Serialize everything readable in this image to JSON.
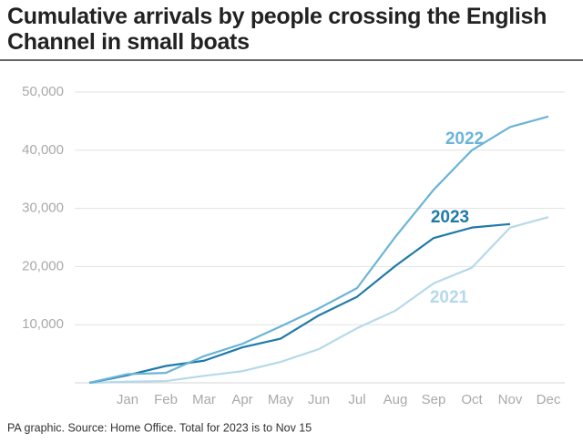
{
  "chart_data": {
    "type": "line",
    "title": "Cumulative arrivals by people crossing the English Channel in small boats",
    "footnote": "PA graphic. Source: Home Office. Total for 2023 is to Nov 15",
    "categories": [
      null,
      "Jan",
      "Feb",
      "Mar",
      "Apr",
      "May",
      "Jun",
      "Jul",
      "Aug",
      "Sep",
      "Oct",
      "Nov",
      "Dec"
    ],
    "series": [
      {
        "name": "2022",
        "color": "#6ab4d8",
        "values": [
          0,
          1500,
          1700,
          4600,
          6700,
          9700,
          12800,
          16300,
          25100,
          33200,
          40000,
          44000,
          45800
        ]
      },
      {
        "name": "2023",
        "color": "#1f7aa8",
        "values": [
          0,
          1300,
          2900,
          3800,
          6100,
          7600,
          11600,
          14800,
          20100,
          24900,
          26700,
          27300,
          null
        ]
      },
      {
        "name": "2021",
        "color": "#b5d9ea",
        "values": [
          0,
          200,
          300,
          1200,
          2000,
          3600,
          5800,
          9400,
          12400,
          17100,
          19800,
          26700,
          28500
        ]
      }
    ],
    "ylim": [
      0,
      50000
    ],
    "yticks": [
      {
        "value": 10000,
        "label": "10,000"
      },
      {
        "value": 20000,
        "label": "20,000"
      },
      {
        "value": 30000,
        "label": "30,000"
      },
      {
        "value": 40000,
        "label": "40,000"
      },
      {
        "value": 50000,
        "label": "50,000"
      }
    ],
    "grid": true
  }
}
